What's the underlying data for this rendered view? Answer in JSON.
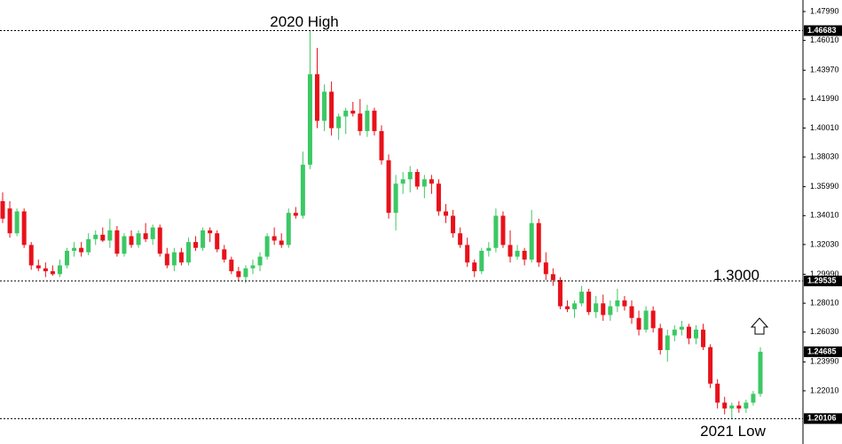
{
  "chart_data": {
    "type": "candlestick",
    "ylim": [
      1.1964,
      1.4878
    ],
    "yticks": [
      {
        "value": 1.4799,
        "label": "1.47990"
      },
      {
        "value": 1.4601,
        "label": "1.46010"
      },
      {
        "value": 1.4397,
        "label": "1.43970"
      },
      {
        "value": 1.4199,
        "label": "1.41990"
      },
      {
        "value": 1.4001,
        "label": "1.40010"
      },
      {
        "value": 1.3803,
        "label": "1.38030"
      },
      {
        "value": 1.3599,
        "label": "1.35990"
      },
      {
        "value": 1.3401,
        "label": "1.34010"
      },
      {
        "value": 1.3203,
        "label": "1.32030"
      },
      {
        "value": 1.2999,
        "label": "1.29990"
      },
      {
        "value": 1.2801,
        "label": "1.28010"
      },
      {
        "value": 1.2603,
        "label": "1.26030"
      },
      {
        "value": 1.2399,
        "label": "1.23990"
      },
      {
        "value": 1.2201,
        "label": "1.22010"
      }
    ],
    "up_color": "#3cc864",
    "down_color": "#e8111a",
    "series": [
      {
        "open": [
          1.35,
          1.345,
          1.328,
          1.343,
          1.32,
          1.306,
          1.304,
          1.302,
          1.3,
          1.306,
          1.316,
          1.318,
          1.315,
          1.324,
          1.327,
          1.323,
          1.33,
          1.314,
          1.326,
          1.32,
          1.328,
          1.324,
          1.332,
          1.314,
          1.306,
          1.315,
          1.308,
          1.322,
          1.318,
          1.33,
          1.328,
          1.317,
          1.31,
          1.302,
          1.298,
          1.304,
          1.306,
          1.312,
          1.326,
          1.323,
          1.32,
          1.342,
          1.34,
          1.375,
          1.437,
          1.405,
          1.425,
          1.4,
          1.408,
          1.412,
          1.41,
          1.398,
          1.412,
          1.398,
          1.378,
          1.342,
          1.362,
          1.365,
          1.37,
          1.36,
          1.365,
          1.362,
          1.343,
          1.34,
          1.328,
          1.32,
          1.308,
          1.302,
          1.316,
          1.318,
          1.34,
          1.32,
          1.312,
          1.316,
          1.31,
          1.335,
          1.308,
          1.3,
          1.296,
          1.278,
          1.276,
          1.28,
          1.288,
          1.274,
          1.28,
          1.272,
          1.278,
          1.282,
          1.278,
          1.27,
          1.262,
          1.275,
          1.263,
          1.248,
          1.258,
          1.262,
          1.264,
          1.256,
          1.262,
          1.25,
          1.225,
          1.212,
          1.208,
          1.21,
          1.208,
          1.212,
          1.218
        ],
        "high": [
          1.356,
          1.35,
          1.345,
          1.345,
          1.322,
          1.31,
          1.308,
          1.306,
          1.31,
          1.318,
          1.322,
          1.322,
          1.328,
          1.33,
          1.332,
          1.338,
          1.333,
          1.328,
          1.33,
          1.33,
          1.335,
          1.334,
          1.334,
          1.318,
          1.318,
          1.318,
          1.325,
          1.326,
          1.332,
          1.332,
          1.33,
          1.32,
          1.312,
          1.305,
          1.306,
          1.31,
          1.315,
          1.328,
          1.332,
          1.328,
          1.345,
          1.346,
          1.384,
          1.46683,
          1.455,
          1.43,
          1.432,
          1.41,
          1.414,
          1.418,
          1.42,
          1.416,
          1.414,
          1.402,
          1.382,
          1.368,
          1.37,
          1.374,
          1.372,
          1.368,
          1.368,
          1.365,
          1.348,
          1.344,
          1.332,
          1.325,
          1.31,
          1.318,
          1.322,
          1.345,
          1.343,
          1.33,
          1.32,
          1.318,
          1.344,
          1.338,
          1.315,
          1.304,
          1.298,
          1.282,
          1.282,
          1.292,
          1.29,
          1.285,
          1.286,
          1.282,
          1.29,
          1.285,
          1.282,
          1.275,
          1.278,
          1.278,
          1.266,
          1.262,
          1.265,
          1.268,
          1.266,
          1.265,
          1.266,
          1.252,
          1.228,
          1.216,
          1.212,
          1.213,
          1.214,
          1.22,
          1.25
        ],
        "low": [
          1.335,
          1.325,
          1.326,
          1.318,
          1.303,
          1.302,
          1.298,
          1.299,
          1.298,
          1.304,
          1.312,
          1.312,
          1.313,
          1.32,
          1.322,
          1.318,
          1.312,
          1.312,
          1.318,
          1.318,
          1.322,
          1.32,
          1.312,
          1.304,
          1.302,
          1.306,
          1.306,
          1.316,
          1.316,
          1.322,
          1.315,
          1.308,
          1.3,
          1.295,
          1.294,
          1.3,
          1.302,
          1.31,
          1.32,
          1.318,
          1.318,
          1.338,
          1.338,
          1.372,
          1.4,
          1.398,
          1.395,
          1.392,
          1.396,
          1.408,
          1.395,
          1.394,
          1.395,
          1.375,
          1.338,
          1.33,
          1.355,
          1.356,
          1.358,
          1.352,
          1.355,
          1.34,
          1.335,
          1.325,
          1.318,
          1.305,
          1.298,
          1.3,
          1.312,
          1.315,
          1.318,
          1.308,
          1.31,
          1.306,
          1.308,
          1.305,
          1.296,
          1.292,
          1.276,
          1.274,
          1.27,
          1.278,
          1.272,
          1.27,
          1.268,
          1.268,
          1.274,
          1.275,
          1.266,
          1.258,
          1.26,
          1.26,
          1.245,
          1.24,
          1.254,
          1.258,
          1.252,
          1.252,
          1.248,
          1.222,
          1.208,
          1.204,
          1.20106,
          1.205,
          1.205,
          1.21,
          1.216
        ],
        "close": [
          1.338,
          1.328,
          1.343,
          1.32,
          1.306,
          1.304,
          1.302,
          1.3,
          1.306,
          1.316,
          1.318,
          1.315,
          1.324,
          1.327,
          1.323,
          1.33,
          1.314,
          1.326,
          1.32,
          1.328,
          1.324,
          1.332,
          1.314,
          1.306,
          1.315,
          1.308,
          1.322,
          1.318,
          1.33,
          1.328,
          1.317,
          1.31,
          1.302,
          1.298,
          1.304,
          1.306,
          1.312,
          1.326,
          1.323,
          1.32,
          1.342,
          1.34,
          1.375,
          1.437,
          1.405,
          1.425,
          1.4,
          1.408,
          1.412,
          1.41,
          1.398,
          1.412,
          1.398,
          1.378,
          1.342,
          1.362,
          1.365,
          1.37,
          1.36,
          1.365,
          1.362,
          1.343,
          1.34,
          1.328,
          1.32,
          1.308,
          1.302,
          1.316,
          1.318,
          1.34,
          1.32,
          1.312,
          1.316,
          1.31,
          1.335,
          1.308,
          1.3,
          1.296,
          1.278,
          1.276,
          1.28,
          1.288,
          1.274,
          1.28,
          1.272,
          1.278,
          1.282,
          1.278,
          1.27,
          1.262,
          1.275,
          1.263,
          1.248,
          1.258,
          1.262,
          1.264,
          1.256,
          1.262,
          1.25,
          1.225,
          1.212,
          1.208,
          1.21,
          1.208,
          1.212,
          1.218,
          1.24685
        ]
      }
    ],
    "price_lines": [
      {
        "value": 1.46683,
        "label": "1.46683",
        "line": true
      },
      {
        "value": 1.29535,
        "label": "1.29535",
        "line": true
      },
      {
        "value": 1.24685,
        "label": "1.24685",
        "line": false
      },
      {
        "value": 1.20106,
        "label": "1.20106",
        "line": true
      }
    ],
    "annotations": [
      "2020 High",
      "1.3000",
      "2021 Low"
    ]
  }
}
